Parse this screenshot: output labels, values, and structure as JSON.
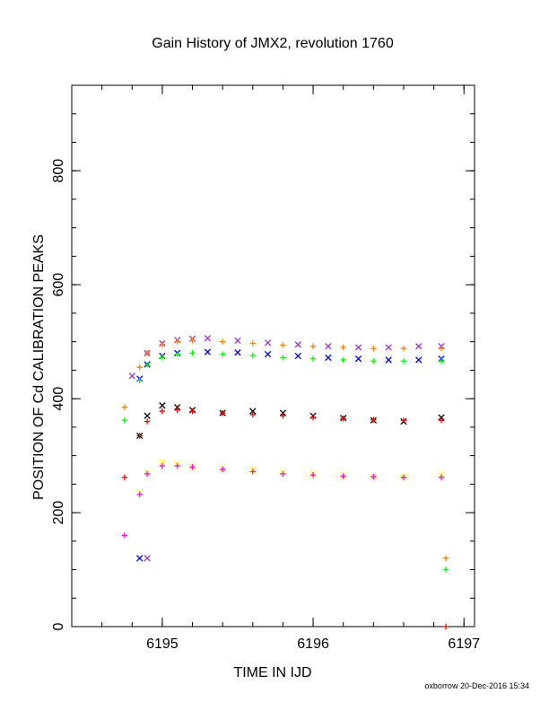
{
  "chart_data": {
    "type": "scatter",
    "title": "Gain History of JMX2, revolution 1760",
    "xlabel": "TIME IN IJD",
    "ylabel": "POSITION OF Cd CALIBRATION PEAKS",
    "xlim": [
      6194.4,
      6197.07
    ],
    "ylim": [
      0,
      950
    ],
    "x_ticks": [
      6195,
      6196,
      6197
    ],
    "x_tick_labels": [
      "6195",
      "6196",
      "6197"
    ],
    "y_ticks": [
      0,
      200,
      400,
      600,
      800
    ],
    "y_tick_labels": [
      "0",
      "200",
      "400",
      "600",
      "800"
    ],
    "grid": false,
    "legend": "none",
    "footer": "oxborrow 20-Dec-2016 15:34",
    "series": [
      {
        "color": "#9932CC",
        "marker": "x",
        "x": [
          6194.8,
          6194.9,
          6195.0,
          6195.1,
          6195.2,
          6195.3,
          6195.5,
          6195.7,
          6195.9,
          6196.1,
          6196.3,
          6196.5,
          6196.7,
          6196.85
        ],
        "y": [
          440,
          480,
          497,
          503,
          505,
          506,
          502,
          498,
          495,
          492,
          490,
          490,
          492,
          492
        ]
      },
      {
        "color": "#FF7F00",
        "marker": "+",
        "x": [
          6194.75,
          6194.85,
          6194.9,
          6195.0,
          6195.1,
          6195.2,
          6195.4,
          6195.6,
          6195.8,
          6196.0,
          6196.2,
          6196.4,
          6196.6,
          6196.85,
          6196.88
        ],
        "y": [
          385,
          455,
          480,
          495,
          500,
          502,
          500,
          497,
          494,
          492,
          490,
          488,
          488,
          488,
          120
        ]
      },
      {
        "color": "#0000FF",
        "marker": "x",
        "x": [
          6194.85,
          6194.9,
          6195.0,
          6195.1,
          6195.3,
          6195.5,
          6195.7,
          6195.9,
          6196.1,
          6196.3,
          6196.5,
          6196.7,
          6196.85
        ],
        "y": [
          435,
          460,
          475,
          480,
          482,
          481,
          478,
          475,
          472,
          470,
          468,
          468,
          470
        ]
      },
      {
        "color": "#00FF00",
        "marker": "+",
        "x": [
          6194.75,
          6194.85,
          6194.9,
          6195.0,
          6195.1,
          6195.2,
          6195.4,
          6195.6,
          6195.8,
          6196.0,
          6196.2,
          6196.4,
          6196.6,
          6196.85,
          6196.88
        ],
        "y": [
          362,
          432,
          460,
          472,
          478,
          480,
          478,
          476,
          472,
          470,
          468,
          466,
          466,
          466,
          100
        ]
      },
      {
        "color": "#000000",
        "marker": "x",
        "x": [
          6194.85,
          6194.9,
          6195.0,
          6195.1,
          6195.2,
          6195.4,
          6195.6,
          6195.8,
          6196.0,
          6196.2,
          6196.4,
          6196.6,
          6196.85
        ],
        "y": [
          335,
          370,
          388,
          385,
          380,
          375,
          378,
          375,
          370,
          366,
          362,
          360,
          367
        ]
      },
      {
        "color": "#FF0000",
        "marker": "+",
        "x": [
          6194.75,
          6194.85,
          6194.9,
          6195.0,
          6195.1,
          6195.2,
          6195.4,
          6195.6,
          6195.8,
          6196.0,
          6196.2,
          6196.4,
          6196.6,
          6196.85,
          6196.88
        ],
        "y": [
          262,
          335,
          360,
          378,
          380,
          378,
          375,
          372,
          370,
          367,
          365,
          363,
          362,
          362,
          0
        ]
      },
      {
        "color": "#FFFF00",
        "marker": "x",
        "x": [
          6194.85,
          6194.9,
          6195.0,
          6195.1,
          6195.2,
          6195.4,
          6195.6,
          6195.8,
          6196.0,
          6196.2,
          6196.4,
          6196.6,
          6196.85
        ],
        "y": [
          235,
          270,
          288,
          285,
          280,
          278,
          275,
          270,
          268,
          265,
          263,
          263,
          267
        ]
      },
      {
        "color": "#FF00FF",
        "marker": "+",
        "x": [
          6194.75,
          6194.85,
          6194.9,
          6195.0,
          6195.1,
          6195.2,
          6195.4,
          6195.6,
          6195.8,
          6196.0,
          6196.2,
          6196.4,
          6196.6,
          6196.85
        ],
        "y": [
          160,
          232,
          268,
          282,
          282,
          280,
          276,
          272,
          268,
          266,
          264,
          263,
          262,
          262
        ]
      },
      {
        "color": "#0000FF",
        "marker": "x",
        "x": [
          6194.85
        ],
        "y": [
          120
        ]
      },
      {
        "color": "#9932CC",
        "marker": "x",
        "x": [
          6194.9
        ],
        "y": [
          120
        ]
      }
    ]
  }
}
